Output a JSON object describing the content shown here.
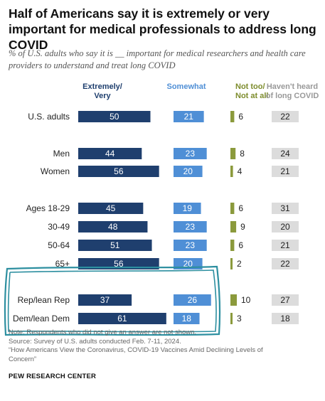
{
  "title": "Half of Americans say it is extremely or very important for medical professionals to address long COVID",
  "subtitle": "% of U.S. adults who say it is __ important for medical researchers and health care providers to understand and treat long COVID",
  "colors": {
    "extremely_very": "#1f3f6e",
    "somewhat": "#4f8fd6",
    "not_too": "#8b9a3c",
    "havent_heard": "#dcdcdc",
    "highlight": "#2d8fa0"
  },
  "chart_data": {
    "type": "bar",
    "title": "Half of Americans say it is extremely or very important for medical professionals to address long COVID",
    "columns": [
      "Extremely/ Very",
      "Somewhat",
      "Not too/ Not at all",
      "Haven't heard of long COVID"
    ],
    "categories": [
      "U.S. adults",
      "Men",
      "Women",
      "Ages 18-29",
      "30-49",
      "50-64",
      "65+",
      "Rep/lean Rep",
      "Dem/lean Dem"
    ],
    "series": [
      {
        "name": "Extremely/ Very",
        "values": [
          50,
          44,
          56,
          45,
          48,
          51,
          56,
          37,
          61
        ]
      },
      {
        "name": "Somewhat",
        "values": [
          21,
          23,
          20,
          19,
          23,
          23,
          20,
          26,
          18
        ]
      },
      {
        "name": "Not too/ Not at all",
        "values": [
          6,
          8,
          4,
          6,
          9,
          6,
          2,
          10,
          3
        ]
      },
      {
        "name": "Haven't heard of long COVID",
        "values": [
          22,
          24,
          21,
          31,
          20,
          21,
          22,
          27,
          18
        ]
      }
    ],
    "highlighted_categories": [
      "Rep/lean Rep",
      "Dem/lean Dem"
    ]
  },
  "notes": {
    "note": "Note: Respondents who did not give an answer are not shown.",
    "source": "Source: Survey of U.S. adults conducted Feb. 7-11, 2024.",
    "report_line1": "“How Americans View the Coronavirus, COVID-19 Vaccines Amid Declining Levels of",
    "report_line2": "Concern”"
  },
  "source_org": "PEW RESEARCH CENTER"
}
